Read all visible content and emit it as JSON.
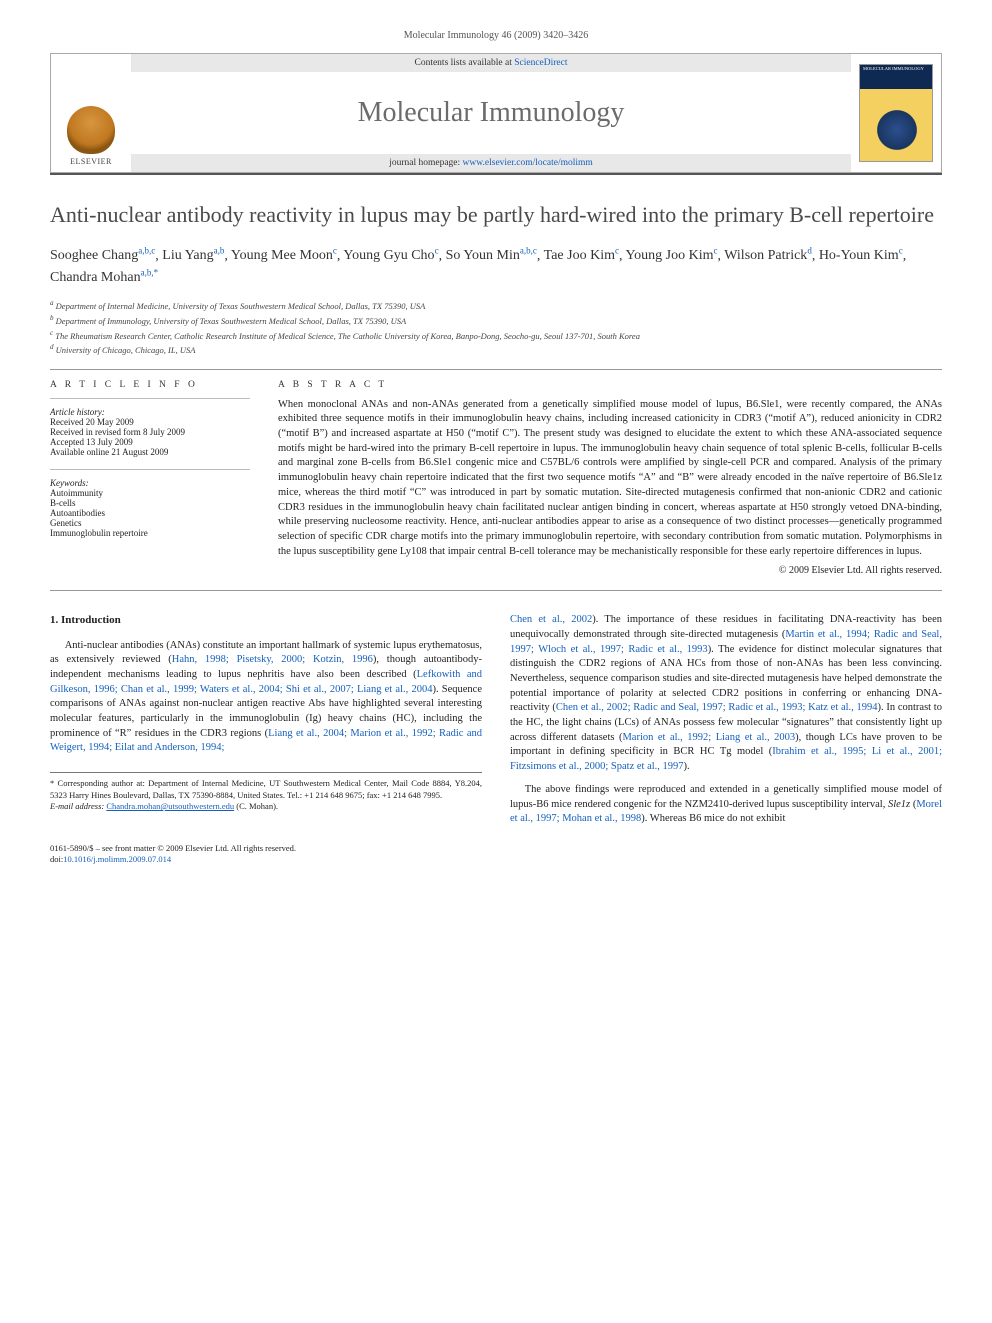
{
  "running_head": "Molecular Immunology 46 (2009) 3420–3426",
  "banner": {
    "contents_line_pre": "Contents lists available at ",
    "contents_link": "ScienceDirect",
    "journal": "Molecular Immunology",
    "homepage_pre": "journal homepage: ",
    "homepage_url": "www.elsevier.com/locate/molimm",
    "elsevier": "ELSEVIER",
    "cover_label": "MOLECULAR IMMUNOLOGY"
  },
  "title": "Anti-nuclear antibody reactivity in lupus may be partly hard-wired into the primary B-cell repertoire",
  "authors": [
    {
      "name": "Sooghee Chang",
      "aff": "a,b,c"
    },
    {
      "name": "Liu Yang",
      "aff": "a,b"
    },
    {
      "name": "Young Mee Moon",
      "aff": "c"
    },
    {
      "name": "Young Gyu Cho",
      "aff": "c"
    },
    {
      "name": "So Youn Min",
      "aff": "a,b,c"
    },
    {
      "name": "Tae Joo Kim",
      "aff": "c"
    },
    {
      "name": "Young Joo Kim",
      "aff": "c"
    },
    {
      "name": "Wilson Patrick",
      "aff": "d"
    },
    {
      "name": "Ho-Youn Kim",
      "aff": "c"
    },
    {
      "name": "Chandra Mohan",
      "aff": "a,b,*"
    }
  ],
  "affiliations": {
    "a": "Department of Internal Medicine, University of Texas Southwestern Medical School, Dallas, TX 75390, USA",
    "b": "Department of Immunology, University of Texas Southwestern Medical School, Dallas, TX 75390, USA",
    "c": "The Rheumatism Research Center, Catholic Research Institute of Medical Science, The Catholic University of Korea, Banpo-Dong, Seocho-gu, Seoul 137-701, South Korea",
    "d": "University of Chicago, Chicago, IL, USA"
  },
  "info": {
    "heading": "A R T I C L E   I N F O",
    "history_label": "Article history:",
    "received": "Received 20 May 2009",
    "revised": "Received in revised form 8 July 2009",
    "accepted": "Accepted 13 July 2009",
    "online": "Available online 21 August 2009",
    "keywords_label": "Keywords:",
    "keywords": [
      "Autoimmunity",
      "B-cells",
      "Autoantibodies",
      "Genetics",
      "Immunoglobulin repertoire"
    ]
  },
  "abstract": {
    "heading": "A B S T R A C T",
    "text": "When monoclonal ANAs and non-ANAs generated from a genetically simplified mouse model of lupus, B6.Sle1, were recently compared, the ANAs exhibited three sequence motifs in their immunoglobulin heavy chains, including increased cationicity in CDR3 (“motif A”), reduced anionicity in CDR2 (“motif B”) and increased aspartate at H50 (“motif C”). The present study was designed to elucidate the extent to which these ANA-associated sequence motifs might be hard-wired into the primary B-cell repertoire in lupus. The immunoglobulin heavy chain sequence of total splenic B-cells, follicular B-cells and marginal zone B-cells from B6.Sle1 congenic mice and C57BL/6 controls were amplified by single-cell PCR and compared. Analysis of the primary immunoglobulin heavy chain repertoire indicated that the first two sequence motifs “A” and “B” were already encoded in the naïve repertoire of B6.Sle1z mice, whereas the third motif “C” was introduced in part by somatic mutation. Site-directed mutagenesis confirmed that non-anionic CDR2 and cationic CDR3 residues in the immunoglobulin heavy chain facilitated nuclear antigen binding in concert, whereas aspartate at H50 strongly vetoed DNA-binding, while preserving nucleosome reactivity. Hence, anti-nuclear antibodies appear to arise as a consequence of two distinct processes—genetically programmed selection of specific CDR charge motifs into the primary immunoglobulin repertoire, with secondary contribution from somatic mutation. Polymorphisms in the lupus susceptibility gene Ly108 that impair central B-cell tolerance may be mechanistically responsible for these early repertoire differences in lupus.",
    "copyright": "© 2009 Elsevier Ltd. All rights reserved."
  },
  "section1_heading": "1. Introduction",
  "para1_a": "Anti-nuclear antibodies (ANAs) constitute an important hallmark of systemic lupus erythematosus, as extensively reviewed (",
  "para1_ref1": "Hahn, 1998; Pisetsky, 2000; Kotzin, 1996",
  "para1_b": "), though autoantibody-independent mechanisms leading to lupus nephritis have also been described (",
  "para1_ref2": "Lefkowith and Gilkeson, 1996; Chan et al., 1999; Waters et al., 2004; Shi et al., 2007; Liang et al., 2004",
  "para1_c": "). Sequence comparisons of ANAs against non-nuclear antigen reactive Abs have highlighted several interesting molecular features, particularly in the immunoglobulin (Ig) heavy chains (HC), including the prominence of “R” residues in the CDR3 regions (",
  "para1_ref3": "Liang et al., 2004; Marion et al., 1992; Radic and Weigert, 1994; Eilat and Anderson, 1994; ",
  "para2_ref0": "Chen et al., 2002",
  "para2_a": "). The importance of these residues in facilitating DNA-reactivity has been unequivocally demonstrated through site-directed mutagenesis (",
  "para2_ref1": "Martin et al., 1994; Radic and Seal, 1997; Wloch et al., 1997; Radic et al., 1993",
  "para2_b": "). The evidence for distinct molecular signatures that distinguish the CDR2 regions of ANA HCs from those of non-ANAs has been less convincing. Nevertheless, sequence comparison studies and site-directed mutagenesis have helped demonstrate the potential importance of polarity at selected CDR2 positions in conferring or enhancing DNA-reactivity (",
  "para2_ref2": "Chen et al., 2002; Radic and Seal, 1997; Radic et al., 1993; Katz et al., 1994",
  "para2_c": "). In contrast to the HC, the light chains (LCs) of ANAs possess few molecular “signatures” that consistently light up across different datasets (",
  "para2_ref3": "Marion et al., 1992; Liang et al., 2003",
  "para2_d": "), though LCs have proven to be important in defining specificity in BCR HC Tg model (",
  "para2_ref4": "Ibrahim et al., 1995; Li et al., 2001; Fitzsimons et al., 2000; Spatz et al., 1997",
  "para2_e": ").",
  "para3_a": "The above findings were reproduced and extended in a genetically simplified mouse model of lupus-B6 mice rendered congenic for the NZM2410-derived lupus susceptibility interval, ",
  "para3_ital": "Sle1z",
  "para3_b": " (",
  "para3_ref1": "Morel et al., 1997; Mohan et al., 1998",
  "para3_c": "). Whereas B6 mice do not exhibit",
  "corr": {
    "star": "* ",
    "text": "Corresponding author at: Department of Internal Medicine, UT Southwestern Medical Center, Mail Code 8884, Y8.204, 5323 Harry Hines Boulevard, Dallas, TX 75390-8884, United States. Tel.: +1 214 648 9675; fax: +1 214 648 7995.",
    "email_label": "E-mail address: ",
    "email": "Chandra.mohan@utsouthwestern.edu",
    "email_tail": " (C. Mohan)."
  },
  "footer": {
    "line1": "0161-5890/$ – see front matter © 2009 Elsevier Ltd. All rights reserved.",
    "doi_pre": "doi:",
    "doi": "10.1016/j.molimm.2009.07.014"
  }
}
